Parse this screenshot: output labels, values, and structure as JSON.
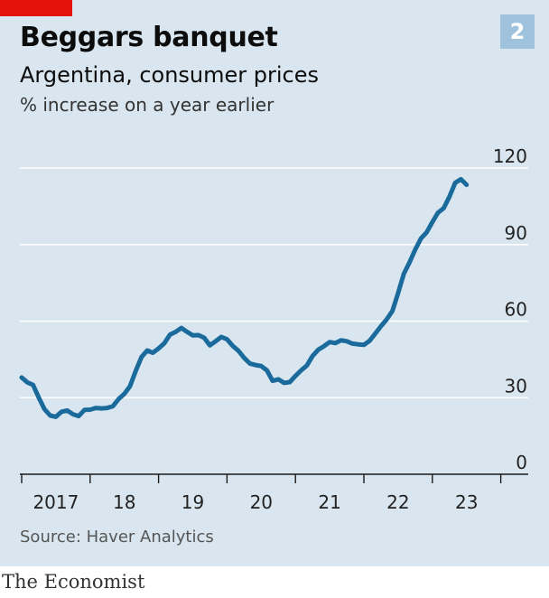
{
  "header": {
    "title": "Beggars banquet",
    "subtitle": "Argentina, consumer prices",
    "units": "% increase on a year earlier",
    "badge": "2"
  },
  "footer": {
    "source": "Source: Haver Analytics",
    "brand": "The Economist"
  },
  "colors": {
    "background": "#d9e6ef",
    "line": "#1b6a9c",
    "accent_red": "#e3120b",
    "badge": "#9fc3dc"
  },
  "chart_data": {
    "type": "line",
    "title": "Beggars banquet",
    "subtitle": "Argentina, consumer prices",
    "ylabel": "% increase on a year earlier",
    "ylim": [
      0,
      120
    ],
    "yticks": [
      0,
      30,
      60,
      90,
      120
    ],
    "ytick_labels": [
      "0",
      "30",
      "60",
      "90",
      "120"
    ],
    "xlim": [
      "2017-01",
      "2023-12"
    ],
    "xtick_labels": [
      "2017",
      "18",
      "19",
      "20",
      "21",
      "22",
      "23"
    ],
    "grid": "horizontal",
    "legend": "none",
    "series": [
      {
        "values": [
          [
            "2017-01",
            37.9
          ],
          [
            "2017-02",
            36.0
          ],
          [
            "2017-03",
            35.0
          ],
          [
            "2017-04",
            30.0
          ],
          [
            "2017-05",
            25.5
          ],
          [
            "2017-06",
            23.0
          ],
          [
            "2017-07",
            22.5
          ],
          [
            "2017-08",
            24.5
          ],
          [
            "2017-09",
            25.0
          ],
          [
            "2017-10",
            23.5
          ],
          [
            "2017-11",
            22.8
          ],
          [
            "2017-12",
            25.2
          ],
          [
            "2018-01",
            25.3
          ],
          [
            "2018-02",
            26.0
          ],
          [
            "2018-03",
            25.8
          ],
          [
            "2018-04",
            26.0
          ],
          [
            "2018-05",
            26.7
          ],
          [
            "2018-06",
            29.5
          ],
          [
            "2018-07",
            31.5
          ],
          [
            "2018-08",
            34.5
          ],
          [
            "2018-09",
            40.5
          ],
          [
            "2018-10",
            45.9
          ],
          [
            "2018-11",
            48.5
          ],
          [
            "2018-12",
            47.6
          ],
          [
            "2019-01",
            49.3
          ],
          [
            "2019-02",
            51.3
          ],
          [
            "2019-03",
            54.7
          ],
          [
            "2019-04",
            55.8
          ],
          [
            "2019-05",
            57.3
          ],
          [
            "2019-06",
            55.8
          ],
          [
            "2019-07",
            54.4
          ],
          [
            "2019-08",
            54.5
          ],
          [
            "2019-09",
            53.5
          ],
          [
            "2019-10",
            50.5
          ],
          [
            "2019-11",
            52.1
          ],
          [
            "2019-12",
            53.8
          ],
          [
            "2020-01",
            52.9
          ],
          [
            "2020-02",
            50.3
          ],
          [
            "2020-03",
            48.4
          ],
          [
            "2020-04",
            45.6
          ],
          [
            "2020-05",
            43.4
          ],
          [
            "2020-06",
            42.8
          ],
          [
            "2020-07",
            42.4
          ],
          [
            "2020-08",
            40.7
          ],
          [
            "2020-09",
            36.6
          ],
          [
            "2020-10",
            37.2
          ],
          [
            "2020-11",
            35.8
          ],
          [
            "2020-12",
            36.1
          ],
          [
            "2021-01",
            38.5
          ],
          [
            "2021-02",
            40.7
          ],
          [
            "2021-03",
            42.6
          ],
          [
            "2021-04",
            46.3
          ],
          [
            "2021-05",
            48.8
          ],
          [
            "2021-06",
            50.2
          ],
          [
            "2021-07",
            51.8
          ],
          [
            "2021-08",
            51.4
          ],
          [
            "2021-09",
            52.5
          ],
          [
            "2021-10",
            52.1
          ],
          [
            "2021-11",
            51.2
          ],
          [
            "2021-12",
            50.9
          ],
          [
            "2022-01",
            50.7
          ],
          [
            "2022-02",
            52.3
          ],
          [
            "2022-03",
            55.1
          ],
          [
            "2022-04",
            58.0
          ],
          [
            "2022-05",
            60.7
          ],
          [
            "2022-06",
            64.0
          ],
          [
            "2022-07",
            71.0
          ],
          [
            "2022-08",
            78.5
          ],
          [
            "2022-09",
            83.0
          ],
          [
            "2022-10",
            88.0
          ],
          [
            "2022-11",
            92.4
          ],
          [
            "2022-12",
            94.8
          ],
          [
            "2023-01",
            98.8
          ],
          [
            "2023-02",
            102.5
          ],
          [
            "2023-03",
            104.3
          ],
          [
            "2023-04",
            108.8
          ],
          [
            "2023-05",
            114.2
          ],
          [
            "2023-06",
            115.6
          ],
          [
            "2023-07",
            113.4
          ]
        ]
      }
    ]
  }
}
